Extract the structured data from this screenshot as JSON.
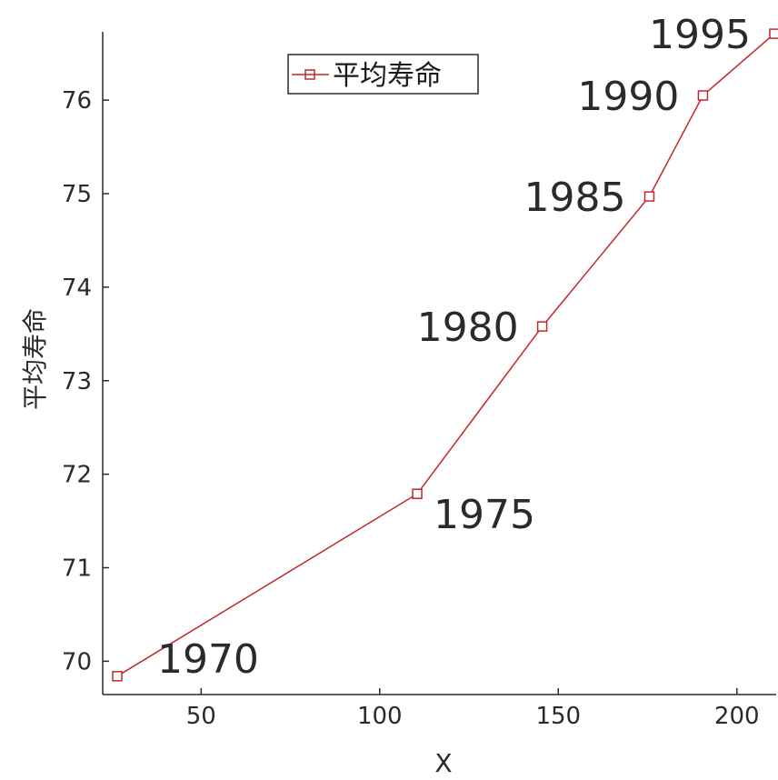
{
  "chart_data": {
    "type": "line",
    "x": [
      26.5,
      110.5,
      145.5,
      175.5,
      190.5,
      210.5
    ],
    "series": [
      {
        "name": "平均寿命",
        "values": [
          69.84,
          71.79,
          73.58,
          74.97,
          76.05,
          76.71
        ],
        "point_labels": [
          "1970",
          "1975",
          "1980",
          "1985",
          "1990",
          "1995"
        ],
        "color": "#c0282d",
        "marker": "square"
      }
    ],
    "xlabel": "X",
    "ylabel": "平均寿命",
    "xlim": [
      26,
      210.5
    ],
    "ylim": [
      69.78,
      76.75
    ],
    "xticks": [
      50,
      100,
      150,
      200
    ],
    "yticks": [
      70,
      71,
      72,
      73,
      74,
      75,
      76
    ],
    "grid": false,
    "legend_position": "top-center"
  }
}
